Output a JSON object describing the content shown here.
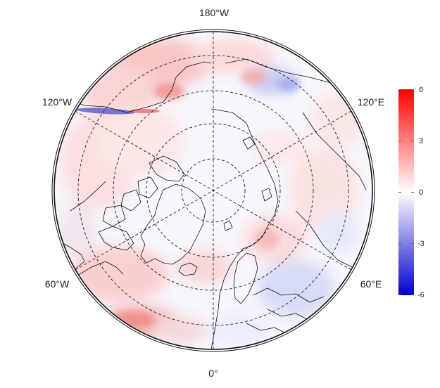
{
  "map": {
    "projection": "north-polar-stereographic",
    "graticule_style": "dashed",
    "longitude_labels": {
      "top": "180°W",
      "upper_left": "120°W",
      "upper_right": "120°E",
      "lower_left": "60°W",
      "lower_right": "60°E",
      "bottom": "0°"
    }
  },
  "colorbar": {
    "tick_labels": [
      "6",
      "3",
      "0",
      "-3",
      "-6"
    ],
    "range": [
      -6,
      6
    ],
    "colors": {
      "high": "#ff0000",
      "mid": "#ffffff",
      "low": "#0000cc"
    }
  }
}
